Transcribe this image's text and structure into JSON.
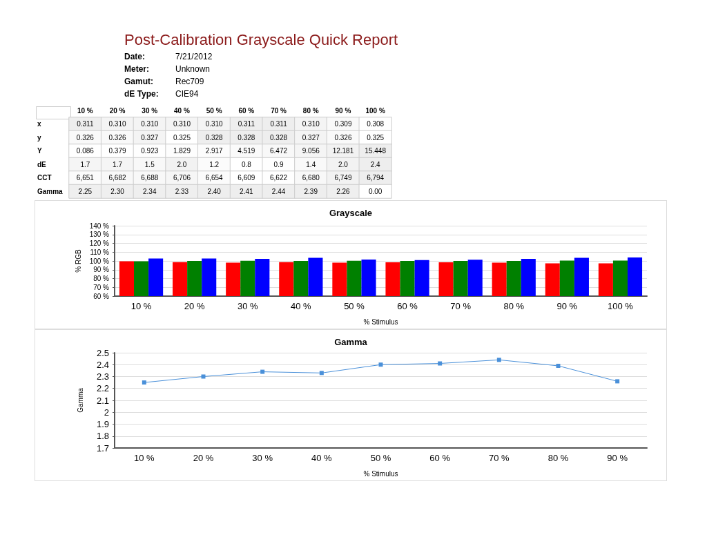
{
  "chart_data": [
    {
      "type": "heatmap",
      "title": "Post-Calibration Grayscale Quick Report",
      "annotations": [
        "Date: 7/21/2012",
        "Meter: Unknown",
        "Gamut: Rec709",
        "dE Type: CIE94"
      ],
      "categories": [
        "10 %",
        "20 %",
        "30 %",
        "40 %",
        "50 %",
        "60 %",
        "70 %",
        "80 %",
        "90 %",
        "100 %"
      ],
      "y_categories": [
        "x",
        "y",
        "Y",
        "dE",
        "CCT",
        "Gamma"
      ],
      "cells": [
        [
          0.311,
          0.31,
          0.31,
          0.31,
          0.31,
          0.311,
          0.311,
          0.31,
          0.309,
          0.308
        ],
        [
          0.326,
          0.326,
          0.327,
          0.325,
          0.328,
          0.328,
          0.328,
          0.327,
          0.326,
          0.325
        ],
        [
          0.086,
          0.379,
          0.923,
          1.829,
          2.917,
          4.519,
          6.472,
          9.056,
          12.181,
          15.448
        ],
        [
          1.7,
          1.7,
          1.5,
          2.0,
          1.2,
          0.8,
          0.9,
          1.4,
          2.0,
          2.4
        ],
        [
          6651,
          6682,
          6688,
          6706,
          6654,
          6609,
          6622,
          6680,
          6749,
          6794
        ],
        [
          2.25,
          2.3,
          2.34,
          2.33,
          2.4,
          2.41,
          2.44,
          2.39,
          2.26,
          0.0
        ]
      ],
      "cell_labels": [
        [
          "0.311",
          "0.310",
          "0.310",
          "0.310",
          "0.310",
          "0.311",
          "0.311",
          "0.310",
          "0.309",
          "0.308"
        ],
        [
          "0.326",
          "0.326",
          "0.327",
          "0.325",
          "0.328",
          "0.328",
          "0.328",
          "0.327",
          "0.326",
          "0.325"
        ],
        [
          "0.086",
          "0.379",
          "0.923",
          "1.829",
          "2.917",
          "4.519",
          "6.472",
          "9.056",
          "12.181",
          "15.448"
        ],
        [
          "1.7",
          "1.7",
          "1.5",
          "2.0",
          "1.2",
          "0.8",
          "0.9",
          "1.4",
          "2.0",
          "2.4"
        ],
        [
          "6,651",
          "6,682",
          "6,688",
          "6,706",
          "6,654",
          "6,609",
          "6,622",
          "6,680",
          "6,749",
          "6,794"
        ],
        [
          "2.25",
          "2.30",
          "2.34",
          "2.33",
          "2.40",
          "2.41",
          "2.44",
          "2.39",
          "2.26",
          "0.00"
        ]
      ]
    },
    {
      "type": "bar",
      "title": "Grayscale",
      "xlabel": "% Stimulus",
      "ylabel": "% RGB",
      "categories": [
        "10 %",
        "20 %",
        "30 %",
        "40 %",
        "50 %",
        "60 %",
        "70 %",
        "80 %",
        "90 %",
        "100 %"
      ],
      "series": [
        {
          "color": "#ff0000",
          "values": [
            99.7,
            98.7,
            98,
            98.7,
            98,
            98.5,
            98.5,
            98,
            97.2,
            97.2
          ]
        },
        {
          "color": "#008000",
          "values": [
            99.7,
            100,
            100.2,
            100,
            100.2,
            100,
            100,
            100,
            100.4,
            100.4
          ]
        },
        {
          "color": "#0000ff",
          "values": [
            102.8,
            102.8,
            102.3,
            103.5,
            101.5,
            101,
            101.3,
            102.3,
            103.5,
            104
          ]
        }
      ],
      "ylim": [
        60,
        140
      ],
      "yticks": [
        {
          "value": 60,
          "label": "60 %"
        },
        {
          "value": 70,
          "label": "70 %"
        },
        {
          "value": 80,
          "label": "80 %"
        },
        {
          "value": 90,
          "label": "90 %"
        },
        {
          "value": 100,
          "label": "100 %"
        },
        {
          "value": 110,
          "label": "110 %"
        },
        {
          "value": 120,
          "label": "120 %"
        },
        {
          "value": 130,
          "label": "130 %"
        },
        {
          "value": 140,
          "label": "140 %"
        }
      ],
      "grid": "y"
    },
    {
      "type": "line",
      "title": "Gamma",
      "xlabel": "% Stimulus",
      "ylabel": "Gamma",
      "categories": [
        "10 %",
        "20 %",
        "30 %",
        "40 %",
        "50 %",
        "60 %",
        "70 %",
        "80 %",
        "90 %"
      ],
      "series": [
        {
          "color": "#4a90d9",
          "values": [
            2.25,
            2.3,
            2.34,
            2.33,
            2.4,
            2.41,
            2.44,
            2.39,
            2.26
          ]
        }
      ],
      "ylim": [
        1.7,
        2.5
      ],
      "yticks": [
        1.7,
        1.8,
        1.9,
        2,
        2.1,
        2.2,
        2.3,
        2.4,
        2.5
      ],
      "marker": "square",
      "line_style": "solid",
      "grid": "y"
    }
  ]
}
